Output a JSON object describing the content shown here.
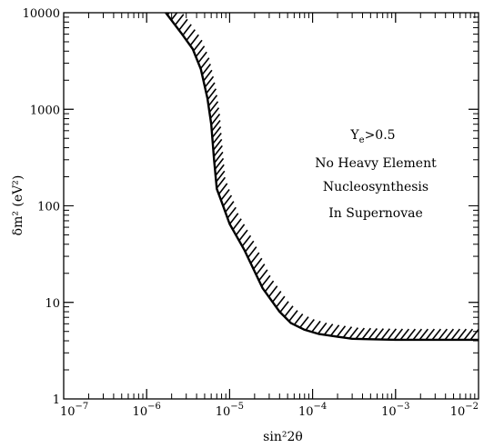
{
  "chart_data": {
    "type": "line",
    "title": "",
    "xlabel": "sin²2θ",
    "ylabel": "δm² (eV²)",
    "xscale": "log",
    "yscale": "log",
    "xlim": [
      1e-07,
      0.01
    ],
    "ylim": [
      1,
      10000
    ],
    "grid": false,
    "x_tick_labels": [
      {
        "value": 1e-07,
        "base": "10",
        "exp": "−7"
      },
      {
        "value": 1e-06,
        "base": "10",
        "exp": "−6"
      },
      {
        "value": 1e-05,
        "base": "10",
        "exp": "−5"
      },
      {
        "value": 0.0001,
        "base": "10",
        "exp": "−4"
      },
      {
        "value": 0.001,
        "base": "10",
        "exp": "−3"
      },
      {
        "value": 0.01,
        "base": "10",
        "exp": "−2"
      }
    ],
    "y_tick_labels": [
      {
        "value": 1,
        "text": "1"
      },
      {
        "value": 10,
        "text": "10"
      },
      {
        "value": 100,
        "text": "100"
      },
      {
        "value": 1000,
        "text": "1000"
      },
      {
        "value": 10000,
        "text": "10000"
      }
    ],
    "series": [
      {
        "hatched_side": "right",
        "x": [
          1.7e-06,
          2.6e-06,
          3.6e-06,
          4.5e-06,
          5.4e-06,
          6e-06,
          6.5e-06,
          7e-06,
          8e-06,
          1e-05,
          1.5e-05,
          2.5e-05,
          4e-05,
          5.5e-05,
          8e-05,
          0.00012,
          0.0002,
          0.0003,
          0.0005,
          0.001,
          0.002,
          0.005,
          0.01
        ],
        "y": [
          10000,
          6200,
          4200,
          2600,
          1300,
          700,
          300,
          150,
          110,
          65,
          35,
          14,
          8,
          6.1,
          5.2,
          4.7,
          4.4,
          4.2,
          4.15,
          4.1,
          4.1,
          4.1,
          4.1
        ]
      }
    ],
    "annotations": [
      {
        "text": "Y",
        "sub": "e",
        "after": ">0.5"
      },
      {
        "text": "No Heavy Element"
      },
      {
        "text": "Nucleosynthesis"
      },
      {
        "text": "In Supernovae"
      }
    ]
  }
}
